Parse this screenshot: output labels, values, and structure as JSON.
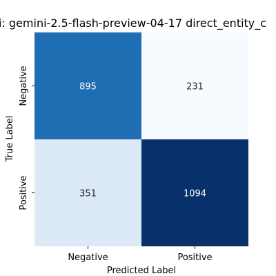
{
  "chart_data": {
    "type": "heatmap",
    "title": "i: gemini-2.5-flash-preview-04-17 direct_entity_c",
    "xlabel": "Predicted Label",
    "ylabel": "True Label",
    "x_categories": [
      "Negative",
      "Positive"
    ],
    "y_categories": [
      "Negative",
      "Positive"
    ],
    "values": [
      [
        895,
        231
      ],
      [
        351,
        1094
      ]
    ],
    "cell_colors": [
      [
        "#1f6eb3",
        "#f7fbff"
      ],
      [
        "#dce9f6",
        "#08306b"
      ]
    ],
    "cell_text_colors": [
      [
        "#ffffff",
        "#262626"
      ],
      [
        "#262626",
        "#ffffff"
      ]
    ],
    "colormap": "Blues",
    "colorbar": false
  }
}
